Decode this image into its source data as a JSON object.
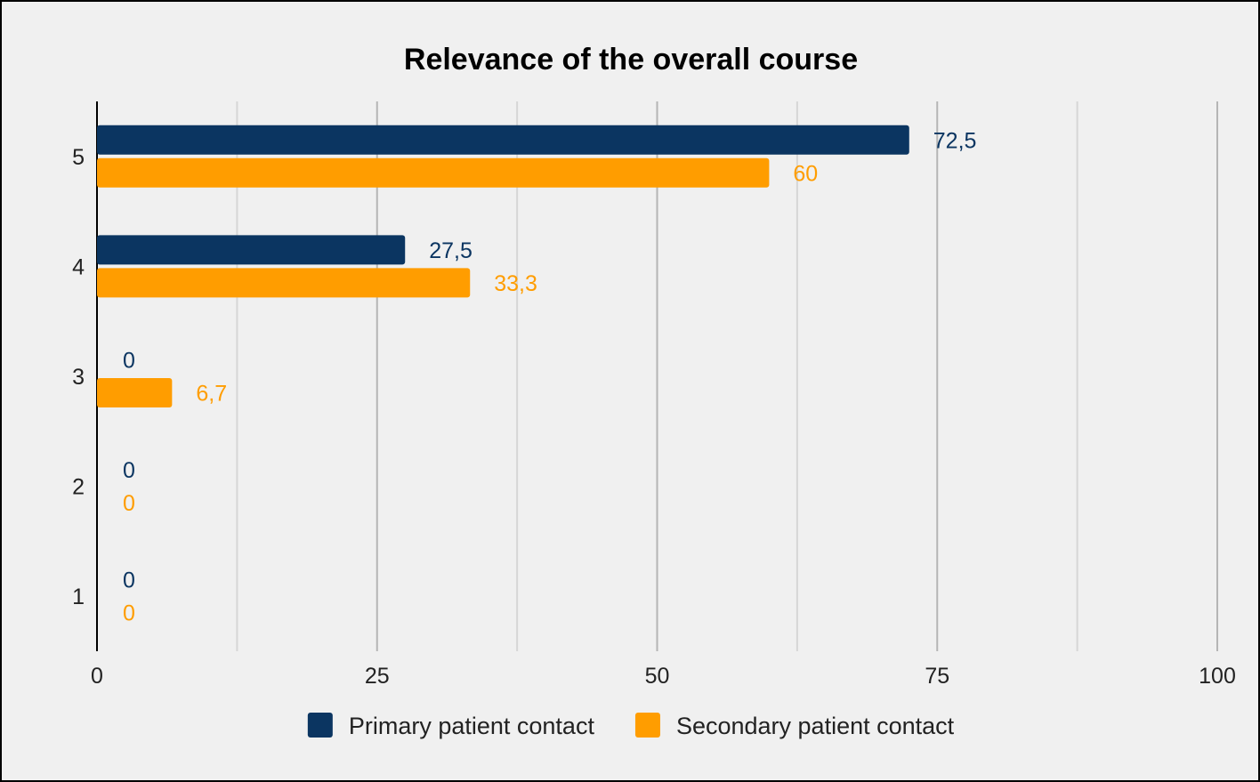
{
  "chart_data": {
    "type": "bar",
    "orientation": "horizontal",
    "title": "Relevance of the overall course",
    "categories": [
      "5",
      "4",
      "3",
      "2",
      "1"
    ],
    "series": [
      {
        "name": "Primary patient contact",
        "color": "#0b3561",
        "values": [
          72.5,
          27.5,
          0,
          0,
          0
        ],
        "labels": [
          "72,5",
          "27,5",
          "0",
          "0",
          "0"
        ]
      },
      {
        "name": "Secondary patient contact",
        "color": "#ff9d00",
        "values": [
          60,
          33.3,
          6.7,
          0,
          0
        ],
        "labels": [
          "60",
          "33,3",
          "6,7",
          "0",
          "0"
        ]
      }
    ],
    "xlim": [
      0,
      100
    ],
    "xticks": [
      0,
      25,
      50,
      75,
      100
    ],
    "xtick_labels": [
      "0",
      "25",
      "50",
      "75",
      "100"
    ],
    "grid": true,
    "legend_position": "bottom"
  }
}
